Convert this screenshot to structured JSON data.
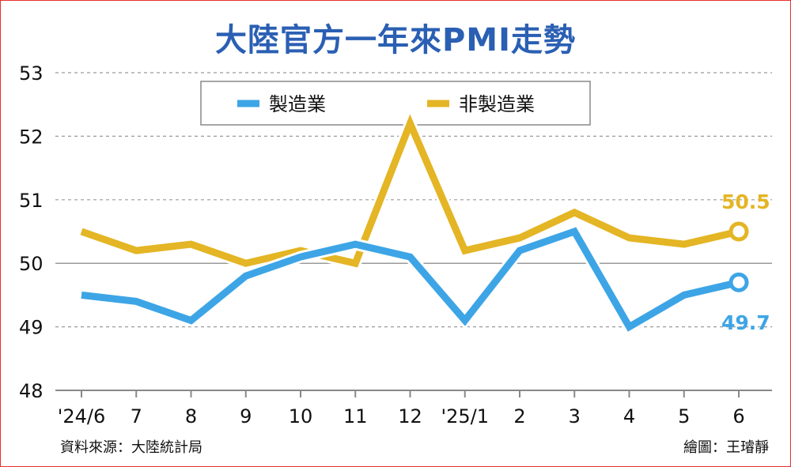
{
  "title": "大陸官方一年來PMI走勢",
  "source": "資料來源：大陸統計局",
  "credit": "繪圖：王璿靜",
  "chart_data": {
    "type": "line",
    "categories": [
      "'24/6",
      "7",
      "8",
      "9",
      "10",
      "11",
      "12",
      "'25/1",
      "2",
      "3",
      "4",
      "5",
      "6"
    ],
    "ylim": [
      48,
      53
    ],
    "yticks": [
      "48",
      "49",
      "50",
      "51",
      "52",
      "53"
    ],
    "series": [
      {
        "name": "製造業",
        "color": "#3da5e6",
        "values": [
          49.5,
          49.4,
          49.1,
          49.8,
          50.1,
          50.3,
          50.1,
          49.1,
          50.2,
          50.5,
          49.0,
          49.5,
          49.7
        ],
        "end_label": "49.7"
      },
      {
        "name": "非製造業",
        "color": "#e4b524",
        "values": [
          50.5,
          50.2,
          50.3,
          50.0,
          50.2,
          50.0,
          52.2,
          50.2,
          50.4,
          50.8,
          50.4,
          50.3,
          50.5
        ],
        "end_label": "50.5"
      }
    ],
    "grid": true,
    "legend": "top-center"
  }
}
